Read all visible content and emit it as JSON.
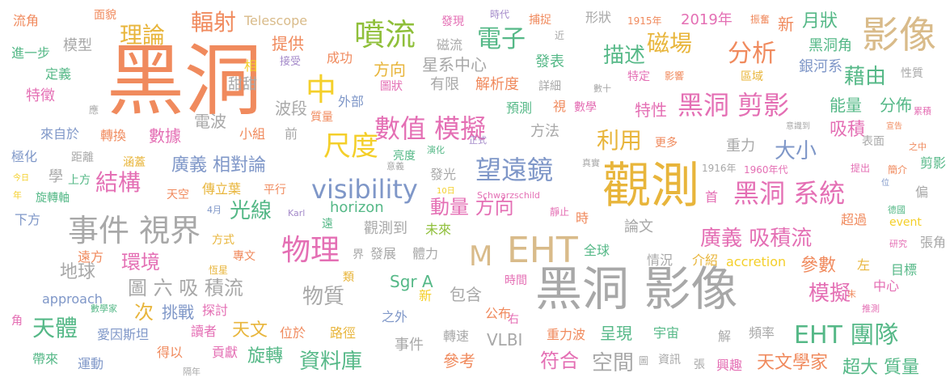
{
  "palette": {
    "orange": "#f08a5d",
    "green": "#55b887",
    "gold": "#e8b53b",
    "purple": "#a389c9",
    "pink": "#e46fb4",
    "blue": "#7f97c8",
    "lime": "#8fbf3a",
    "gray": "#a8a8a8",
    "tan": "#d9bb8a",
    "yellow": "#f4cf2a"
  },
  "words": [
    {
      "text": "黑洞",
      "color": "orange"
    },
    {
      "text": "黑洞 影像",
      "color": "gray"
    },
    {
      "text": "觀測",
      "color": "gold"
    },
    {
      "text": "EHT",
      "color": "tan"
    },
    {
      "text": "影像",
      "color": "tan"
    },
    {
      "text": "事件 視界",
      "color": "gray"
    },
    {
      "text": "噴流",
      "color": "lime"
    },
    {
      "text": "望遠鏡",
      "color": "blue"
    },
    {
      "text": "visibility",
      "color": "blue"
    },
    {
      "text": "黑洞 剪影",
      "color": "pink"
    },
    {
      "text": "黑洞 系統",
      "color": "pink"
    },
    {
      "text": "數值 模擬",
      "color": "pink"
    },
    {
      "text": "EHT 團隊",
      "color": "green"
    },
    {
      "text": "物理",
      "color": "pink"
    },
    {
      "text": "M",
      "color": "tan"
    },
    {
      "text": "中",
      "color": "yellow"
    },
    {
      "text": "尺度",
      "color": "yellow"
    },
    {
      "text": "理論",
      "color": "gold"
    },
    {
      "text": "輻射",
      "color": "orange"
    },
    {
      "text": "電子",
      "color": "green"
    },
    {
      "text": "分析",
      "color": "orange"
    },
    {
      "text": "磁場",
      "color": "gold"
    },
    {
      "text": "描述",
      "color": "green"
    },
    {
      "text": "結構",
      "color": "pink"
    },
    {
      "text": "天體",
      "color": "green"
    },
    {
      "text": "圖 六 吸 積流",
      "color": "gray"
    },
    {
      "text": "資料庫",
      "color": "green"
    },
    {
      "text": "廣義 相對論",
      "color": "blue"
    },
    {
      "text": "廣義 吸積流",
      "color": "pink"
    },
    {
      "text": "利用",
      "color": "gold"
    },
    {
      "text": "動量 方向",
      "color": "pink"
    },
    {
      "text": "藉由",
      "color": "green"
    },
    {
      "text": "模擬",
      "color": "pink"
    },
    {
      "text": "光線",
      "color": "green"
    },
    {
      "text": "環境",
      "color": "pink"
    },
    {
      "text": "大小",
      "color": "blue"
    },
    {
      "text": "物質",
      "color": "gray"
    },
    {
      "text": "空間",
      "color": "gray"
    },
    {
      "text": "符合",
      "color": "pink"
    },
    {
      "text": "天文學家",
      "color": "orange"
    },
    {
      "text": "超大 質量",
      "color": "green"
    },
    {
      "text": "吸積",
      "color": "pink"
    },
    {
      "text": "地球",
      "color": "gray"
    },
    {
      "text": "旋轉",
      "color": "green"
    },
    {
      "text": "天文",
      "color": "gold"
    },
    {
      "text": "數據",
      "color": "pink"
    },
    {
      "text": "次",
      "color": "gold"
    },
    {
      "text": "挑戰",
      "color": "blue"
    },
    {
      "text": "參數",
      "color": "orange"
    },
    {
      "text": "特性",
      "color": "pink"
    },
    {
      "text": "能量",
      "color": "green"
    },
    {
      "text": "分佈",
      "color": "green"
    },
    {
      "text": "銀河系",
      "color": "blue"
    },
    {
      "text": "黑洞角",
      "color": "green"
    },
    {
      "text": "月狀",
      "color": "green"
    },
    {
      "text": "新",
      "color": "orange"
    },
    {
      "text": "提供",
      "color": "orange"
    },
    {
      "text": "模型",
      "color": "gray"
    },
    {
      "text": "流角",
      "color": "orange"
    },
    {
      "text": "面貌",
      "color": "orange"
    },
    {
      "text": "進一步",
      "color": "green"
    },
    {
      "text": "定義",
      "color": "green"
    },
    {
      "text": "特徵",
      "color": "pink"
    },
    {
      "text": "應",
      "color": "gray"
    },
    {
      "text": "來自於",
      "color": "blue"
    },
    {
      "text": "轉換",
      "color": "orange"
    },
    {
      "text": "電波",
      "color": "gray"
    },
    {
      "text": "小組",
      "color": "orange"
    },
    {
      "text": "前",
      "color": "gray"
    },
    {
      "text": "波段",
      "color": "gray"
    },
    {
      "text": "質量",
      "color": "orange"
    },
    {
      "text": "外部",
      "color": "blue"
    },
    {
      "text": "甜甜",
      "color": "gray"
    },
    {
      "text": "相",
      "color": "yellow"
    },
    {
      "text": "接受",
      "color": "purple"
    },
    {
      "text": "成功",
      "color": "orange"
    },
    {
      "text": "方向",
      "color": "gold"
    },
    {
      "text": "圖狀",
      "color": "pink"
    },
    {
      "text": "Telescope",
      "color": "tan"
    },
    {
      "text": "發現",
      "color": "pink"
    },
    {
      "text": "時代",
      "color": "purple"
    },
    {
      "text": "捕捉",
      "color": "orange"
    },
    {
      "text": "近",
      "color": "gray"
    },
    {
      "text": "形狀",
      "color": "gray"
    },
    {
      "text": "1915年",
      "color": "orange"
    },
    {
      "text": "振奮",
      "color": "orange"
    },
    {
      "text": "2019年",
      "color": "pink"
    },
    {
      "text": "磁流",
      "color": "gray"
    },
    {
      "text": "星系中心",
      "color": "gray"
    },
    {
      "text": "發表",
      "color": "green"
    },
    {
      "text": "有限",
      "color": "gray"
    },
    {
      "text": "解析度",
      "color": "orange"
    },
    {
      "text": "詳細",
      "color": "gray"
    },
    {
      "text": "預測",
      "color": "green"
    },
    {
      "text": "視",
      "color": "orange"
    },
    {
      "text": "數學",
      "color": "pink"
    },
    {
      "text": "數十",
      "color": "gray"
    },
    {
      "text": "特定",
      "color": "pink"
    },
    {
      "text": "影響",
      "color": "orange"
    },
    {
      "text": "區域",
      "color": "gold"
    },
    {
      "text": "性質",
      "color": "gray"
    },
    {
      "text": "累積",
      "color": "pink"
    },
    {
      "text": "宣告",
      "color": "orange"
    },
    {
      "text": "意識到",
      "color": "gray"
    },
    {
      "text": "方法",
      "color": "gray"
    },
    {
      "text": "更多",
      "color": "orange"
    },
    {
      "text": "重力",
      "color": "gray"
    },
    {
      "text": "表面",
      "color": "gray"
    },
    {
      "text": "之中",
      "color": "orange"
    },
    {
      "text": "極化",
      "color": "blue"
    },
    {
      "text": "距離",
      "color": "gray"
    },
    {
      "text": "涵蓋",
      "color": "gold"
    },
    {
      "text": "亮度",
      "color": "green"
    },
    {
      "text": "演化",
      "color": "green"
    },
    {
      "text": "正式",
      "color": "purple"
    },
    {
      "text": "發光",
      "color": "gray"
    },
    {
      "text": "意義",
      "color": "gray"
    },
    {
      "text": "真實",
      "color": "gray"
    },
    {
      "text": "1916年",
      "color": "gray"
    },
    {
      "text": "1960年代",
      "color": "pink"
    },
    {
      "text": "首",
      "color": "pink"
    },
    {
      "text": "提出",
      "color": "pink"
    },
    {
      "text": "簡介",
      "color": "orange"
    },
    {
      "text": "剪影",
      "color": "green"
    },
    {
      "text": "今日",
      "color": "yellow"
    },
    {
      "text": "學",
      "color": "gray"
    },
    {
      "text": "上方",
      "color": "green"
    },
    {
      "text": "年",
      "color": "yellow"
    },
    {
      "text": "天空",
      "color": "orange"
    },
    {
      "text": "傳立葉",
      "color": "gold"
    },
    {
      "text": "平行",
      "color": "orange"
    },
    {
      "text": "旋轉軸",
      "color": "green"
    },
    {
      "text": "10日",
      "color": "yellow"
    },
    {
      "text": "Schwarzschild",
      "color": "pink"
    },
    {
      "text": "位",
      "color": "blue"
    },
    {
      "text": "偏",
      "color": "gray"
    },
    {
      "text": "德國",
      "color": "green"
    },
    {
      "text": "下方",
      "color": "blue"
    },
    {
      "text": "4月",
      "color": "blue"
    },
    {
      "text": "Karl",
      "color": "purple"
    },
    {
      "text": "horizon",
      "color": "green"
    },
    {
      "text": "靜止",
      "color": "pink"
    },
    {
      "text": "時",
      "color": "orange"
    },
    {
      "text": "超過",
      "color": "orange"
    },
    {
      "text": "event",
      "color": "yellow"
    },
    {
      "text": "遠",
      "color": "green"
    },
    {
      "text": "觀測到",
      "color": "gray"
    },
    {
      "text": "未來",
      "color": "lime"
    },
    {
      "text": "論文",
      "color": "gray"
    },
    {
      "text": "方式",
      "color": "gold"
    },
    {
      "text": "研究",
      "color": "pink"
    },
    {
      "text": "張角",
      "color": "gray"
    },
    {
      "text": "遠方",
      "color": "orange"
    },
    {
      "text": "專文",
      "color": "orange"
    },
    {
      "text": "界",
      "color": "gray"
    },
    {
      "text": "發展",
      "color": "gray"
    },
    {
      "text": "體力",
      "color": "gray"
    },
    {
      "text": "全球",
      "color": "green"
    },
    {
      "text": "情況",
      "color": "gray"
    },
    {
      "text": "介紹",
      "color": "gold"
    },
    {
      "text": "accretion",
      "color": "yellow"
    },
    {
      "text": "左",
      "color": "gold"
    },
    {
      "text": "目標",
      "color": "green"
    },
    {
      "text": "恆星",
      "color": "gold"
    },
    {
      "text": "類",
      "color": "gold"
    },
    {
      "text": "Sgr A",
      "color": "green"
    },
    {
      "text": "包含",
      "color": "gray"
    },
    {
      "text": "時間",
      "color": "pink"
    },
    {
      "text": "中心",
      "color": "pink"
    },
    {
      "text": "approach",
      "color": "blue"
    },
    {
      "text": "新",
      "color": "yellow"
    },
    {
      "text": "數學家",
      "color": "green"
    },
    {
      "text": "探討",
      "color": "pink"
    },
    {
      "text": "公布",
      "color": "orange"
    },
    {
      "text": "右",
      "color": "pink"
    },
    {
      "text": "末",
      "color": "orange"
    },
    {
      "text": "推測",
      "color": "pink"
    },
    {
      "text": "角",
      "color": "pink"
    },
    {
      "text": "之外",
      "color": "blue"
    },
    {
      "text": "愛因斯坦",
      "color": "blue"
    },
    {
      "text": "讀者",
      "color": "pink"
    },
    {
      "text": "位於",
      "color": "orange"
    },
    {
      "text": "路徑",
      "color": "gold"
    },
    {
      "text": "重力波",
      "color": "orange"
    },
    {
      "text": "呈現",
      "color": "green"
    },
    {
      "text": "宇宙",
      "color": "green"
    },
    {
      "text": "解",
      "color": "gray"
    },
    {
      "text": "頻率",
      "color": "gray"
    },
    {
      "text": "轉速",
      "color": "gray"
    },
    {
      "text": "VLBI",
      "color": "gray"
    },
    {
      "text": "事件",
      "color": "gray"
    },
    {
      "text": "得以",
      "color": "orange"
    },
    {
      "text": "貢獻",
      "color": "pink"
    },
    {
      "text": "帶來",
      "color": "green"
    },
    {
      "text": "運動",
      "color": "blue"
    },
    {
      "text": "隔年",
      "color": "gray"
    },
    {
      "text": "參考",
      "color": "orange"
    },
    {
      "text": "圖",
      "color": "gray"
    },
    {
      "text": "資訊",
      "color": "gray"
    },
    {
      "text": "張",
      "color": "gray"
    },
    {
      "text": "興趣",
      "color": "pink"
    }
  ]
}
